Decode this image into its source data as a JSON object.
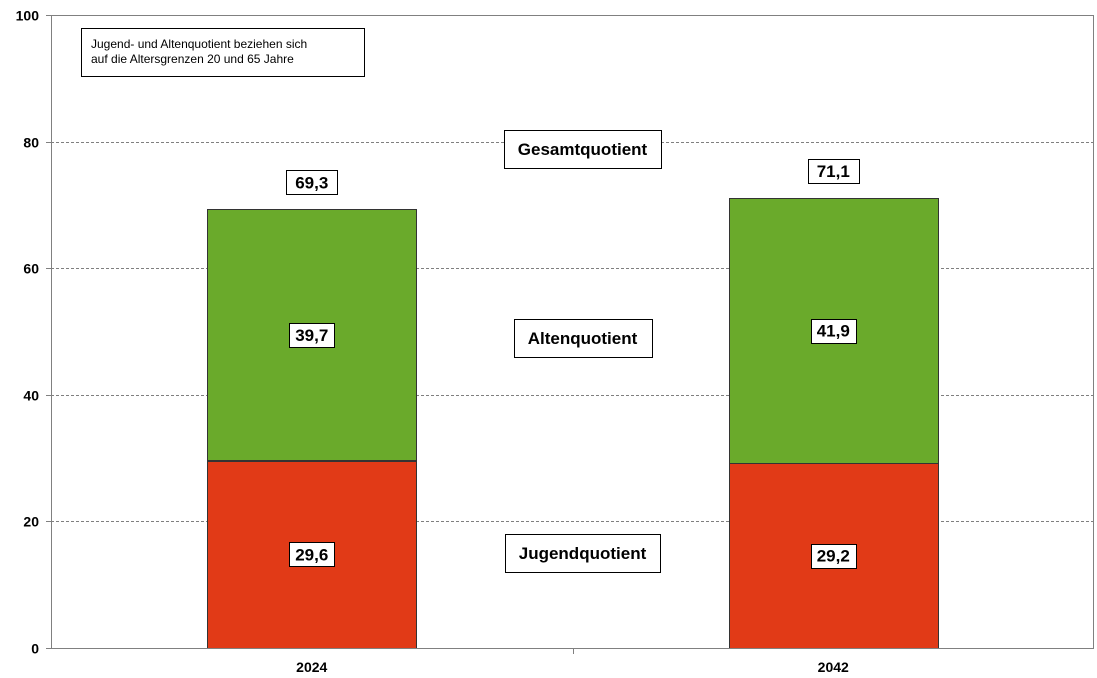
{
  "chart_data": {
    "type": "bar",
    "stacked": true,
    "categories": [
      "2024",
      "2042"
    ],
    "series": [
      {
        "name": "Jugendquotient",
        "values": [
          29.6,
          29.2
        ],
        "labels": [
          "29,6",
          "29,2"
        ],
        "color": "#e13a17"
      },
      {
        "name": "Altenquotient",
        "values": [
          39.7,
          41.9
        ],
        "labels": [
          "39,7",
          "41,9"
        ],
        "color": "#6aaa2b"
      }
    ],
    "totals": {
      "name": "Gesamtquotient",
      "values": [
        69.3,
        71.1
      ],
      "labels": [
        "69,3",
        "71,1"
      ]
    },
    "ylim": [
      0,
      100
    ],
    "yticks": [
      0,
      20,
      40,
      60,
      80,
      100
    ],
    "grid": true,
    "title": "",
    "xlabel": "",
    "ylabel": "",
    "note": [
      "Jugend- und Altenquotient beziehen sich",
      "auf die Altersgrenzen 20 und 65 Jahre"
    ]
  }
}
